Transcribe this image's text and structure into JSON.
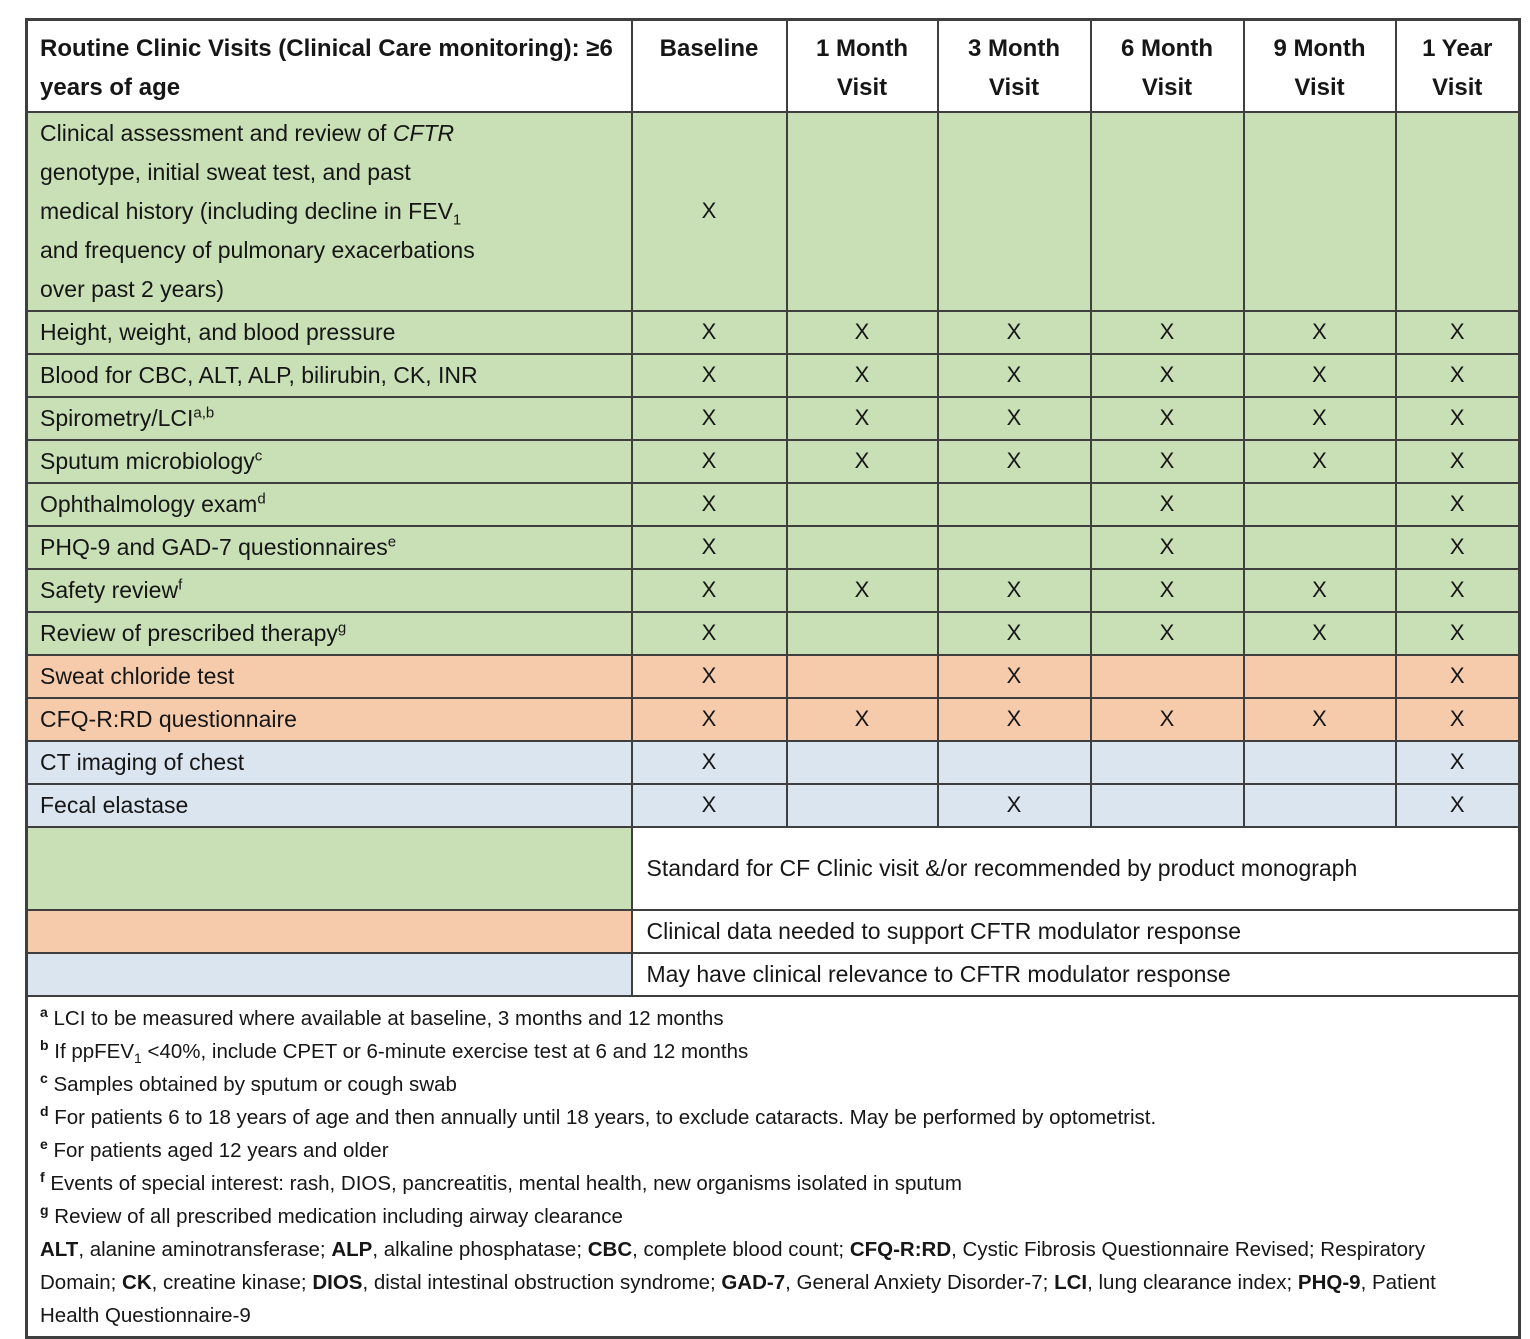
{
  "colors": {
    "green": "#c9e0b6",
    "orange": "#f6cbac",
    "blue": "#dbe5ef",
    "border": "#3f3f3f",
    "text": "#161616"
  },
  "table": {
    "corner_header": "Routine Clinic Visits (Clinical Care monitoring): ≥6 years of age",
    "columns": [
      "Baseline",
      "1 Month Visit",
      "3 Month Visit",
      "6 Month Visit",
      "9 Month Visit",
      "1 Year Visit"
    ],
    "rows": [
      {
        "section": "green",
        "label_parts": [
          {
            "text": "Clinical assessment and review of "
          },
          {
            "text": "CFTR",
            "italic": true
          },
          {
            "br": true
          },
          {
            "text": "genotype, initial sweat test, and past"
          },
          {
            "br": true
          },
          {
            "text": "medical history (including decline in FEV"
          },
          {
            "text": "1",
            "sub": true
          },
          {
            "br": true
          },
          {
            "text": "and frequency of pulmonary exacerbations"
          },
          {
            "br": true
          },
          {
            "text": "over past 2 years)"
          }
        ],
        "marks": [
          "X",
          "",
          "",
          "",
          "",
          ""
        ]
      },
      {
        "section": "green",
        "label_parts": [
          {
            "text": "Height, weight, and blood pressure"
          }
        ],
        "marks": [
          "X",
          "X",
          "X",
          "X",
          "X",
          "X"
        ]
      },
      {
        "section": "green",
        "label_parts": [
          {
            "text": "Blood for CBC, ALT, ALP, bilirubin, CK, INR"
          }
        ],
        "marks": [
          "X",
          "X",
          "X",
          "X",
          "X",
          "X"
        ]
      },
      {
        "section": "green",
        "label_parts": [
          {
            "text": "Spirometry/LCI"
          },
          {
            "text": "a,b",
            "sup": true
          }
        ],
        "marks": [
          "X",
          "X",
          "X",
          "X",
          "X",
          "X"
        ]
      },
      {
        "section": "green",
        "label_parts": [
          {
            "text": "Sputum microbiology"
          },
          {
            "text": "c",
            "sup": true
          }
        ],
        "marks": [
          "X",
          "X",
          "X",
          "X",
          "X",
          "X"
        ]
      },
      {
        "section": "green",
        "label_parts": [
          {
            "text": "Ophthalmology exam"
          },
          {
            "text": "d",
            "sup": true
          }
        ],
        "marks": [
          "X",
          "",
          "",
          "X",
          "",
          "X"
        ]
      },
      {
        "section": "green",
        "label_parts": [
          {
            "text": "PHQ-9 and GAD-7 questionnaires"
          },
          {
            "text": "e",
            "sup": true
          }
        ],
        "marks": [
          "X",
          "",
          "",
          "X",
          "",
          "X"
        ]
      },
      {
        "section": "green",
        "label_parts": [
          {
            "text": "Safety review"
          },
          {
            "text": "f",
            "sup": true
          }
        ],
        "marks": [
          "X",
          "X",
          "X",
          "X",
          "X",
          "X"
        ]
      },
      {
        "section": "green",
        "label_parts": [
          {
            "text": "Review of prescribed therapy"
          },
          {
            "text": "g",
            "sup": true
          }
        ],
        "marks": [
          "X",
          "",
          "X",
          "X",
          "X",
          "X"
        ]
      },
      {
        "section": "orange",
        "label_parts": [
          {
            "text": "Sweat chloride test"
          }
        ],
        "marks": [
          "X",
          "",
          "X",
          "",
          "",
          "X"
        ]
      },
      {
        "section": "orange",
        "label_parts": [
          {
            "text": "CFQ-R:RD questionnaire"
          }
        ],
        "marks": [
          "X",
          "X",
          "X",
          "X",
          "X",
          "X"
        ]
      },
      {
        "section": "blue",
        "label_parts": [
          {
            "text": "CT imaging of chest"
          }
        ],
        "marks": [
          "X",
          "",
          "",
          "",
          "",
          "X"
        ]
      },
      {
        "section": "blue",
        "label_parts": [
          {
            "text": "Fecal elastase"
          }
        ],
        "marks": [
          "X",
          "",
          "X",
          "",
          "",
          "X"
        ]
      }
    ]
  },
  "legend": [
    {
      "color": "green",
      "text": "Standard for CF Clinic visit &/or recommended by product monograph"
    },
    {
      "color": "orange",
      "text": "Clinical data needed to support CFTR modulator response"
    },
    {
      "color": "blue",
      "text": "May have clinical relevance to CFTR modulator response"
    }
  ],
  "footnotes": {
    "lines": [
      {
        "marker": "a",
        "parts": [
          {
            "text": " LCI to be measured where available at baseline, 3 months and 12 months"
          }
        ]
      },
      {
        "marker": "b",
        "parts": [
          {
            "text": " If ppFEV"
          },
          {
            "text": "1",
            "sub": true
          },
          {
            "text": " <40%, include CPET or 6-minute exercise test at 6 and 12 months"
          }
        ]
      },
      {
        "marker": "c",
        "parts": [
          {
            "text": " Samples obtained by sputum or cough swab"
          }
        ]
      },
      {
        "marker": "d",
        "parts": [
          {
            "text": " For patients 6 to 18 years of age and then annually until 18 years, to exclude cataracts. May be performed by optometrist."
          }
        ]
      },
      {
        "marker": "e",
        "parts": [
          {
            "text": " For patients aged 12 years and older"
          }
        ]
      },
      {
        "marker": "f",
        "parts": [
          {
            "text": " Events of special interest: rash, DIOS, pancreatitis, mental health, new organisms isolated in sputum"
          }
        ]
      },
      {
        "marker": "g",
        "parts": [
          {
            "text": " Review of all prescribed medication including airway clearance"
          }
        ]
      }
    ],
    "abbreviations": [
      {
        "term": "ALT",
        "rest": ", alanine aminotransferase; "
      },
      {
        "term": "ALP",
        "rest": ", alkaline phosphatase; "
      },
      {
        "term": "CBC",
        "rest": ", complete blood count; "
      },
      {
        "term": "CFQ-R:RD",
        "rest": ", Cystic Fibrosis Questionnaire Revised; Respiratory Domain; "
      },
      {
        "term": "CK",
        "rest": ", creatine kinase; "
      },
      {
        "term": "DIOS",
        "rest": ", distal intestinal obstruction syndrome; "
      },
      {
        "term": "GAD-7",
        "rest": ", General Anxiety Disorder-7; "
      },
      {
        "term": "LCI",
        "rest": ", lung clearance index; "
      },
      {
        "term": "PHQ-9",
        "rest": ", Patient Health Questionnaire-9"
      }
    ]
  }
}
